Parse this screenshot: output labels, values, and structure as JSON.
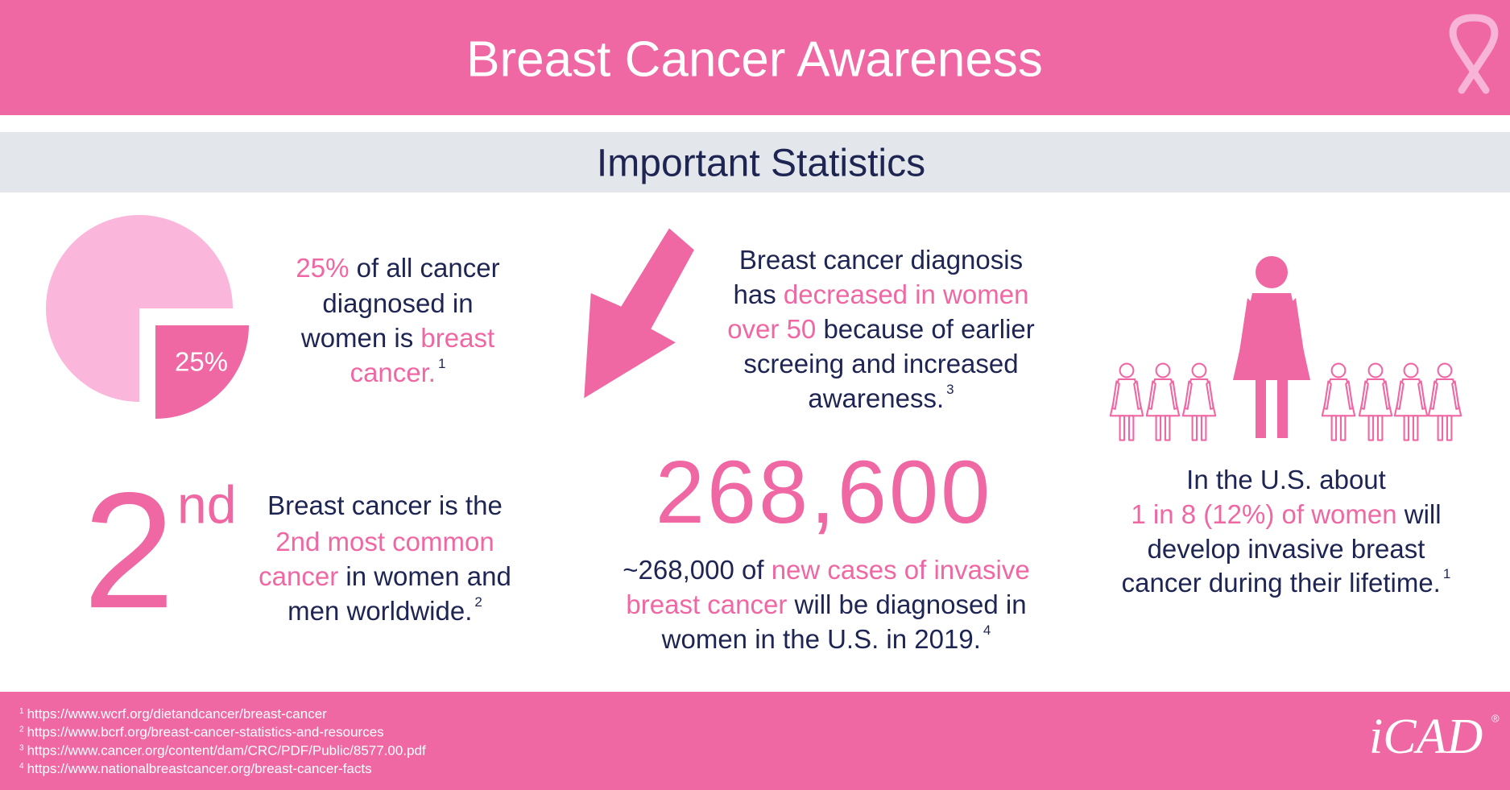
{
  "header": {
    "title": "Breast Cancer Awareness"
  },
  "section": {
    "title": "Important Statistics"
  },
  "pie": {
    "value": 25,
    "label": "25%"
  },
  "blocks": [
    {
      "lines": [
        [
          {
            "text": "25%",
            "em": true
          },
          {
            "text": " of all cancer"
          }
        ],
        [
          {
            "text": "diagnosed in"
          }
        ],
        [
          {
            "text": "women is "
          },
          {
            "text": "breast",
            "em": true
          }
        ],
        [
          {
            "text": "cancer.",
            "em": true
          },
          {
            "text": "1",
            "sup": true
          }
        ]
      ]
    },
    {
      "lines": [
        [
          {
            "text": "Breast cancer diagnosis"
          }
        ],
        [
          {
            "text": "has "
          },
          {
            "text": "decreased in women",
            "em": true
          }
        ],
        [
          {
            "text": "over 50",
            "em": true
          },
          {
            "text": " because of earlier"
          }
        ],
        [
          {
            "text": "screeing and increased"
          }
        ],
        [
          {
            "text": "awareness."
          },
          {
            "text": "3",
            "sup": true
          }
        ]
      ]
    },
    {
      "lines": [
        [
          {
            "text": "In the U.S. about"
          }
        ],
        [
          {
            "text": "1 in 8 (12%) of women",
            "em": true
          },
          {
            "text": " will"
          }
        ],
        [
          {
            "text": "develop invasive breast"
          }
        ],
        [
          {
            "text": "cancer during their lifetime."
          },
          {
            "text": "1",
            "sup": true
          }
        ]
      ]
    },
    {
      "lines": [
        [
          {
            "text": "Breast cancer is the"
          }
        ],
        [
          {
            "text": "2nd most common",
            "em": true
          }
        ],
        [
          {
            "text": "cancer",
            "em": true
          },
          {
            "text": " in women and"
          }
        ],
        [
          {
            "text": "men worldwide."
          },
          {
            "text": "2",
            "sup": true
          }
        ]
      ]
    },
    {
      "lines": [
        [
          {
            "text": "~268,000 of "
          },
          {
            "text": "new cases of invasive",
            "em": true
          }
        ],
        [
          {
            "text": "breast cancer",
            "em": true
          },
          {
            "text": " will be diagnosed in"
          }
        ],
        [
          {
            "text": "women in the U.S. in 2019."
          },
          {
            "text": "4",
            "sup": true
          }
        ]
      ]
    }
  ],
  "rank": {
    "number": "2",
    "suffix": "nd"
  },
  "big_number": "268,600",
  "footnotes": [
    {
      "num": "1",
      "url": "https://www.wcrf.org/dietandcancer/breast-cancer"
    },
    {
      "num": "2",
      "url": "https://www.bcrf.org/breast-cancer-statistics-and-resources"
    },
    {
      "num": "3",
      "url": "https://www.cancer.org/content/dam/CRC/PDF/Public/8577.00.pdf"
    },
    {
      "num": "4",
      "url": "https://www.nationalbreastcancer.org/breast-cancer-facts"
    }
  ],
  "logo": {
    "text": "iCAD",
    "mark": "®"
  }
}
